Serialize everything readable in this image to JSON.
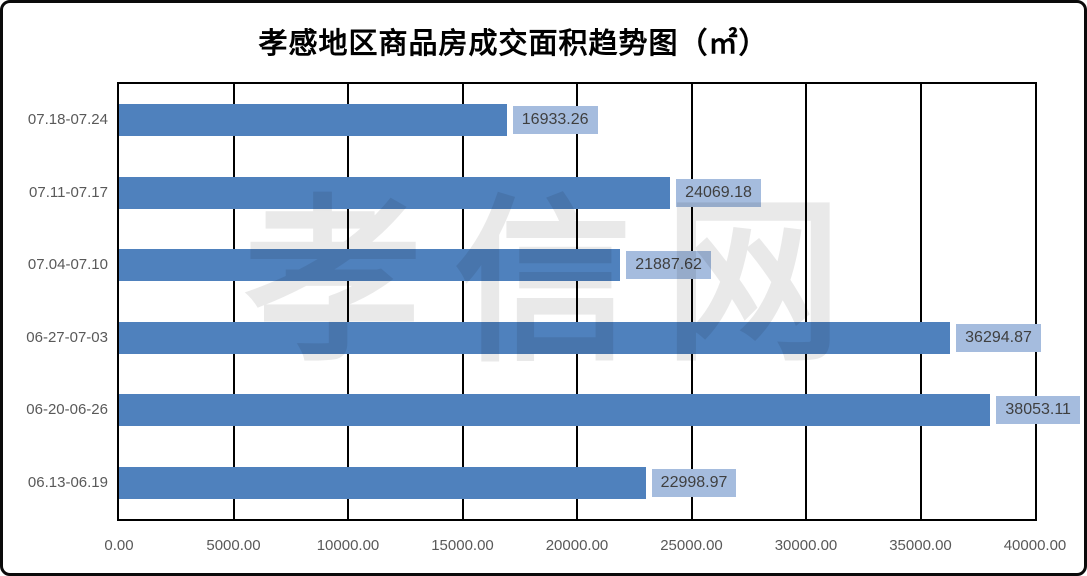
{
  "title": "孝感地区商品房成交面积趋势图（㎡）",
  "watermark": "孝信网",
  "chart_data": {
    "type": "bar",
    "orientation": "horizontal",
    "title": "孝感地区商品房成交面积趋势图（㎡）",
    "categories": [
      "07.18-07.24",
      "07.11-07.17",
      "07.04-07.10",
      "06-27-07-03",
      "06-20-06-26",
      "06.13-06.19"
    ],
    "values": [
      16933.26,
      24069.18,
      21887.62,
      36294.87,
      38053.11,
      22998.97
    ],
    "data_labels": [
      "16933.26",
      "24069.18",
      "21887.62",
      "36294.87",
      "38053.11",
      "22998.97"
    ],
    "xlim": [
      0,
      40000
    ],
    "x_ticks": [
      "0.00",
      "5000.00",
      "10000.00",
      "15000.00",
      "20000.00",
      "25000.00",
      "30000.00",
      "35000.00",
      "40000.00"
    ],
    "grid": true,
    "legend": "none",
    "colors": {
      "bar": "#4F81BD",
      "label_box": "#A5BCDE",
      "label_text": "#3F3F3F",
      "axis_text": "#595959",
      "gridline": "#000000",
      "plot_border": "#000000"
    }
  }
}
